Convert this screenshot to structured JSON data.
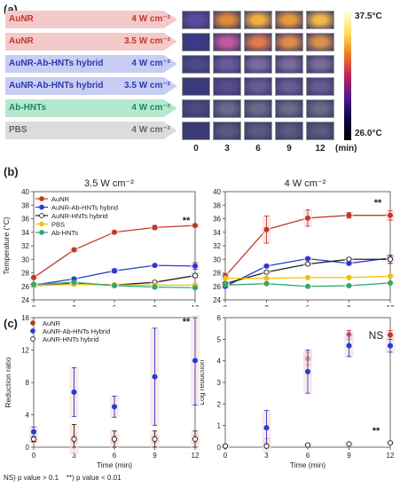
{
  "figure": {
    "panel_a": {
      "label": "(a)",
      "rows": [
        {
          "name": "AuNR",
          "power": "4 W cm⁻²",
          "arrow": "#f4c9c9",
          "text": "#c0392b",
          "thermal": [
            "#5a4aa0",
            "#e08a3a",
            "#f0b040",
            "#e89a3a",
            "#f0b848"
          ]
        },
        {
          "name": "AuNR",
          "power": "3.5 W cm⁻²",
          "arrow": "#f4c9c9",
          "text": "#c0392b",
          "thermal": [
            "#3a3a8a",
            "#c05a9a",
            "#e07a4a",
            "#e08a4a",
            "#d8924a"
          ]
        },
        {
          "name": "AuNR-Ab-HNTs hybrid",
          "power": "4 W cm⁻²",
          "arrow": "#c9cdf4",
          "text": "#2a3ab0",
          "thermal": [
            "#4a4a8a",
            "#6a5a9a",
            "#7a6aa0",
            "#7a6a9a",
            "#7a6a98"
          ]
        },
        {
          "name": "AuNR-Ab-HNTs hybrid",
          "power": "3.5 W cm⁻²",
          "arrow": "#c9cdf4",
          "text": "#2a3ab0",
          "thermal": [
            "#3a3a80",
            "#5a4a90",
            "#6a5a98",
            "#6a5a96",
            "#6a5a94"
          ]
        },
        {
          "name": "Ab-HNTs",
          "power": "4 W cm⁻²",
          "arrow": "#b4e8cf",
          "text": "#1a8a5a",
          "thermal": [
            "#4a4a80",
            "#6a6a8a",
            "#6a6a88",
            "#6a6a86",
            "#6a6a86"
          ]
        },
        {
          "name": "PBS",
          "power": "4 W cm⁻²",
          "arrow": "#dcdcdc",
          "text": "#666666",
          "thermal": [
            "#3a3a78",
            "#5a5a80",
            "#5a5a80",
            "#5a5a7e",
            "#5a5a7e"
          ]
        }
      ],
      "time_ticks": [
        "0",
        "3",
        "6",
        "9",
        "12"
      ],
      "time_unit": "(min)",
      "colorbar_max": "37.5°C",
      "colorbar_min": "26.0°C"
    },
    "panel_b": {
      "label": "(b)",
      "left_title": "3.5 W cm⁻²",
      "right_title": "4 W cm⁻²",
      "ylabel": "Temperature (°C)",
      "xlabel": "Time (min)",
      "left_sig": "**",
      "right_sig": "**"
    },
    "panel_c": {
      "label": "(c)",
      "left_ylabel": "Reduction ratio",
      "right_ylabel": "Log reduction",
      "xlabel": "Time (min)",
      "left_sig": "**",
      "right_sig_top": "NS",
      "right_sig_bottom": "**"
    },
    "footnote": "NS) p value > 0.1    **) p value < 0.01"
  },
  "chart_data": [
    {
      "type": "line",
      "title": "3.5 W cm⁻²",
      "xlabel": "Time (min)",
      "ylabel": "Temperature (°C)",
      "x": [
        0,
        3,
        6,
        9,
        12
      ],
      "xlim": [
        0,
        12
      ],
      "ylim": [
        24,
        40
      ],
      "yticks": [
        24,
        26,
        28,
        30,
        32,
        34,
        36,
        38,
        40
      ],
      "legend": "top-left",
      "series": [
        {
          "name": "AuNR",
          "color": "#c0392b",
          "fill": "#c0392b",
          "values": [
            27.3,
            31.4,
            34.0,
            34.7,
            35.0
          ],
          "err": [
            0.2,
            0.2,
            0.2,
            0.3,
            0.2
          ]
        },
        {
          "name": "AuNR-Ab-HNTs hybrid",
          "color": "#2a3ad0",
          "fill": "#2a3ad0",
          "values": [
            26.2,
            27.1,
            28.3,
            29.1,
            29.0
          ],
          "err": [
            0.2,
            0.2,
            0.3,
            0.2,
            0.5
          ]
        },
        {
          "name": "AuNR-HNTs hybrid",
          "color": "#222222",
          "fill": "#ffffff",
          "values": [
            26.1,
            26.4,
            26.2,
            26.6,
            27.6
          ],
          "err": [
            0.2,
            0.2,
            0.2,
            0.2,
            0.3
          ]
        },
        {
          "name": "PBS",
          "color": "#f0c000",
          "fill": "#f0c000",
          "values": [
            26.1,
            26.3,
            26.2,
            26.2,
            26.2
          ],
          "err": [
            0.1,
            0.1,
            0.1,
            0.1,
            0.1
          ]
        },
        {
          "name": "Ab-HNTs",
          "color": "#2aaa70",
          "fill": "#2aaa70",
          "values": [
            26.3,
            26.6,
            26.1,
            25.9,
            25.8
          ],
          "err": [
            0.1,
            0.1,
            0.1,
            0.2,
            0.1
          ]
        }
      ]
    },
    {
      "type": "line",
      "title": "4 W cm⁻²",
      "xlabel": "Time (min)",
      "ylabel": "",
      "x": [
        0,
        3,
        6,
        9,
        12
      ],
      "xlim": [
        0,
        12
      ],
      "ylim": [
        24,
        40
      ],
      "yticks": [
        24,
        26,
        28,
        30,
        32,
        34,
        36,
        38,
        40
      ],
      "series": [
        {
          "name": "AuNR",
          "color": "#c0392b",
          "fill": "#c0392b",
          "values": [
            27.5,
            34.4,
            36.1,
            36.5,
            36.5
          ],
          "err": [
            0.4,
            2.0,
            1.2,
            0.4,
            0.7
          ]
        },
        {
          "name": "AuNR-Ab-HNTs hybrid",
          "color": "#2a3ad0",
          "fill": "#2a3ad0",
          "values": [
            26.0,
            29.0,
            30.1,
            29.4,
            30.2
          ],
          "err": [
            0.2,
            0.2,
            0.2,
            0.2,
            0.3
          ]
        },
        {
          "name": "AuNR-HNTs hybrid",
          "color": "#222222",
          "fill": "#ffffff",
          "values": [
            26.4,
            28.1,
            29.3,
            30.0,
            30.0
          ],
          "err": [
            0.2,
            0.2,
            0.2,
            0.2,
            0.6
          ]
        },
        {
          "name": "PBS",
          "color": "#f0c000",
          "fill": "#f0c000",
          "values": [
            27.2,
            27.2,
            27.3,
            27.3,
            27.5
          ],
          "err": [
            0.1,
            0.1,
            0.1,
            0.1,
            0.1
          ]
        },
        {
          "name": "Ab-HNTs",
          "color": "#2aaa70",
          "fill": "#2aaa70",
          "values": [
            26.2,
            26.4,
            26.0,
            26.1,
            26.5
          ],
          "err": [
            0.1,
            0.1,
            0.1,
            0.1,
            0.1
          ]
        }
      ]
    },
    {
      "type": "scatter",
      "title": "",
      "xlabel": "Time (min)",
      "ylabel": "Reduction ratio",
      "x": [
        0,
        3,
        6,
        9,
        12
      ],
      "xlim": [
        0,
        12
      ],
      "ylim": [
        0,
        16
      ],
      "yticks": [
        0,
        4,
        8,
        12,
        16
      ],
      "legend": "top-left",
      "series": [
        {
          "name": "AuNR",
          "color": "#c0392b",
          "fill": "#c0392b",
          "values": [
            1.0,
            1.0,
            1.0,
            1.0,
            1.0
          ],
          "err": [
            0.4,
            0.4,
            0.4,
            0.4,
            0.4
          ]
        },
        {
          "name": "AuNR-Ab-HNTs Hybrid",
          "color": "#2a3ad0",
          "fill": "#2a3ad0",
          "values": [
            1.9,
            6.8,
            5.0,
            8.7,
            10.7
          ],
          "err": [
            0.6,
            3.0,
            1.3,
            6.0,
            5.5
          ]
        },
        {
          "name": "AuNR-HNTs hybrid",
          "color": "#222222",
          "fill": "#ffffff",
          "values": [
            1.0,
            1.0,
            1.0,
            1.0,
            1.0
          ],
          "err": [
            0.3,
            1.8,
            1.0,
            1.0,
            1.0
          ]
        }
      ]
    },
    {
      "type": "scatter",
      "title": "",
      "xlabel": "Time (min)",
      "ylabel": "Log reduction",
      "x": [
        0,
        3,
        6,
        9,
        12
      ],
      "xlim": [
        0,
        12
      ],
      "ylim": [
        0,
        6
      ],
      "yticks": [
        0,
        1,
        2,
        3,
        4,
        5,
        6
      ],
      "series": [
        {
          "name": "AuNR",
          "color": "#c0392b",
          "fill": "#c0392b",
          "values": [
            0.05,
            0.1,
            4.1,
            5.2,
            5.2
          ],
          "err": [
            0.05,
            0.3,
            0.3,
            0.2,
            0.2
          ]
        },
        {
          "name": "AuNR-Ab-HNTs Hybrid",
          "color": "#2a3ad0",
          "fill": "#2a3ad0",
          "values": [
            0.05,
            0.9,
            3.5,
            4.7,
            4.7
          ],
          "err": [
            0.05,
            0.8,
            1.0,
            0.5,
            0.3
          ]
        },
        {
          "name": "AuNR-HNTs hybrid",
          "color": "#222222",
          "fill": "#ffffff",
          "values": [
            0.05,
            0.05,
            0.1,
            0.15,
            0.2
          ],
          "err": [
            0.05,
            0.05,
            0.05,
            0.05,
            0.05
          ]
        }
      ]
    }
  ]
}
